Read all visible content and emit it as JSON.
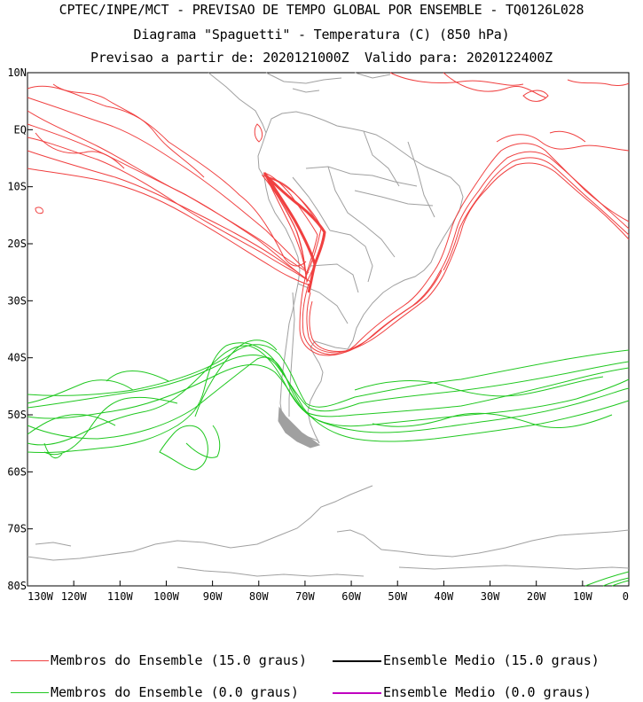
{
  "header": {
    "line1": "CPTEC/INPE/MCT - PREVISAO DE TEMPO GLOBAL POR ENSEMBLE - TQ0126L028",
    "line2": "Diagrama \"Spaguetti\" - Temperatura (C) (850 hPa)",
    "line3": "Previsao a partir de: 2020121000Z  Valido para: 2020122400Z"
  },
  "map": {
    "lon_range": [
      -130,
      0
    ],
    "lat_range": [
      -80,
      10
    ],
    "lat_ticks": [
      "10N",
      "EQ",
      "10S",
      "20S",
      "30S",
      "40S",
      "50S",
      "60S",
      "70S",
      "80S"
    ],
    "lon_ticks": [
      "130W",
      "120W",
      "110W",
      "100W",
      "90W",
      "80W",
      "70W",
      "60W",
      "50W",
      "40W",
      "30W",
      "20W",
      "10W",
      "0"
    ],
    "colors": {
      "land": "#a0a0a0",
      "warm_members": "#f04040",
      "cold_members": "#20c820",
      "warm_mean": "#000000",
      "cold_mean": "#c000c0"
    }
  },
  "legend": {
    "warm_members": "Membros do Ensemble (15.0 graus)",
    "warm_mean": "Ensemble Medio (15.0 graus)",
    "cold_members": "Membros do Ensemble (0.0 graus)",
    "cold_mean": "Ensemble Medio (0.0 graus)"
  }
}
